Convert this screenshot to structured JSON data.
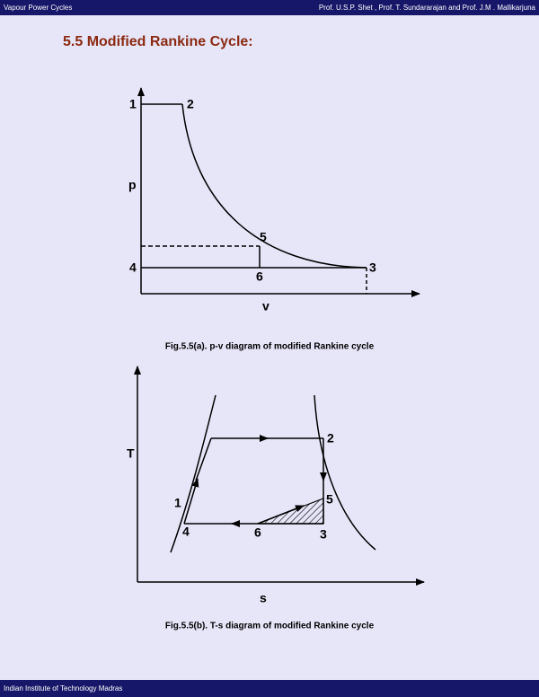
{
  "header": {
    "left": "Vapour Power Cycles",
    "right": "Prof. U.S.P. Shet , Prof. T. Sundararajan and Prof. J.M . Mallikarjuna"
  },
  "title": "5.5 Modified Rankine Cycle:",
  "figure_a": {
    "axis_labels": [
      "p",
      "v"
    ],
    "point_labels": [
      "1",
      "2",
      "5",
      "4",
      "6",
      "3"
    ],
    "caption": "Fig.5.5(a). p-v diagram of modified Rankine cycle"
  },
  "figure_b": {
    "axis_labels": [
      "T",
      "s"
    ],
    "point_labels": [
      "2",
      "1",
      "5",
      "4",
      "6",
      "3"
    ],
    "caption": "Fig.5.5(b). T-s diagram of modified Rankine cycle"
  },
  "footer": "Indian Institute of Technology Madras"
}
